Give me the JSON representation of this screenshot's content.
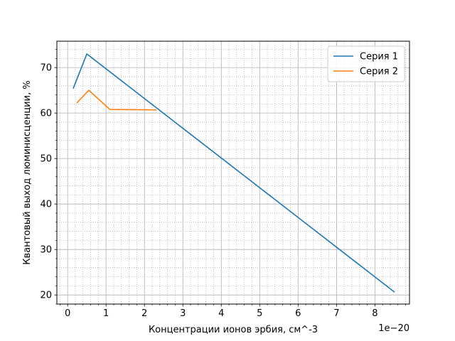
{
  "chart_data": {
    "type": "line",
    "xlabel": "Концентрации ионов эрбия, см^-3",
    "ylabel": "Квантовый выход люминисценции, %",
    "x_offset_label": "1e−20",
    "xlim": [
      -0.28,
      8.9
    ],
    "ylim": [
      18,
      75.8
    ],
    "x_ticks": [
      0,
      1,
      2,
      3,
      4,
      5,
      6,
      7,
      8
    ],
    "y_ticks": [
      20,
      30,
      40,
      50,
      60,
      70
    ],
    "grid": {
      "major": true,
      "minor": true
    },
    "legend_position": "upper right",
    "series": [
      {
        "name": "Серия 1",
        "color": "#1f77b4",
        "x": [
          0.15,
          0.5,
          8.5
        ],
        "y": [
          65.5,
          73.0,
          20.7
        ]
      },
      {
        "name": "Серия 2",
        "color": "#ff7f0e",
        "x": [
          0.25,
          0.55,
          1.1,
          2.3
        ],
        "y": [
          62.3,
          65.0,
          60.8,
          60.7
        ]
      }
    ]
  }
}
